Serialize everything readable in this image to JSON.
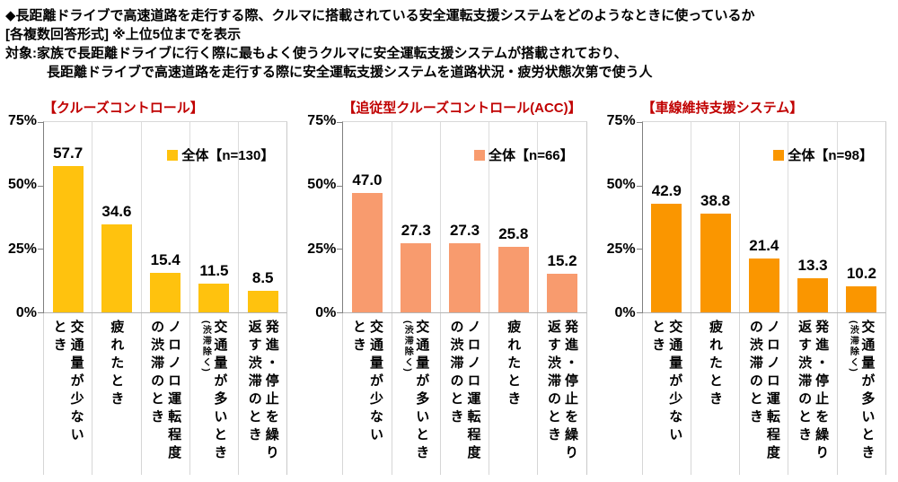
{
  "header": {
    "title": "◆長距離ドライブで高速道路を走行する際、クルマに搭載されている安全運転支援システムをどのようなときに使っているか",
    "format_note": "[各複数回答形式] ※上位5位までを表示",
    "target_line1": "対象:家族で長距離ドライブに行く際に最もよく使うクルマに安全運転支援システムが搭載されており、",
    "target_line2": "長距離ドライブで高速道路を走行する際に安全運転支援システムを道路状況・疲労状態次第で使う人"
  },
  "colors": {
    "title_red": "#C00000",
    "axis_gray": "#7F7F7F",
    "grid_gray": "#DCDCDC"
  },
  "chart_data": [
    {
      "type": "bar",
      "title": "【クルーズコントロール】",
      "legend": "全体【n=130】",
      "bar_color": "#FFC20E",
      "ylim": [
        0,
        75
      ],
      "yticks": [
        "75%",
        "50%",
        "25%",
        "0%"
      ],
      "grid": "vertical-separators",
      "legend_position": "top-right",
      "categories": [
        "交通量が少ないとき",
        "疲れたとき",
        "ノロノロ運転程度の渋滞のとき",
        "交通量が多いとき(渋滞除く)",
        "発進・停止を繰り返す渋滞のとき"
      ],
      "values": [
        57.7,
        34.6,
        15.4,
        11.5,
        8.5
      ],
      "category_columns": [
        [
          {
            "t": "交通量が少ない"
          },
          {
            "t": "とき"
          }
        ],
        [
          {
            "t": "疲れたとき"
          }
        ],
        [
          {
            "t": "ノロノロ運転程度"
          },
          {
            "t": "の渋滞のとき"
          }
        ],
        [
          {
            "t": "交通量が多いとき"
          },
          {
            "t": "(渋滞除く)",
            "small": true
          }
        ],
        [
          {
            "t": "発進・停止を繰り"
          },
          {
            "t": "返す渋滞のとき"
          }
        ]
      ]
    },
    {
      "type": "bar",
      "title": "【追従型クルーズコントロール(ACC)】",
      "legend": "全体【n=66】",
      "bar_color": "#F89B6E",
      "ylim": [
        0,
        75
      ],
      "yticks": [
        "75%",
        "50%",
        "25%",
        "0%"
      ],
      "grid": "vertical-separators",
      "legend_position": "top-right",
      "categories": [
        "交通量が少ないとき",
        "交通量が多いとき(渋滞除く)",
        "ノロノロ運転程度の渋滞のとき",
        "疲れたとき",
        "発進・停止を繰り返す渋滞のとき"
      ],
      "values": [
        47.0,
        27.3,
        27.3,
        25.8,
        15.2
      ],
      "category_columns": [
        [
          {
            "t": "交通量が少ない"
          },
          {
            "t": "とき"
          }
        ],
        [
          {
            "t": "交通量が多いとき"
          },
          {
            "t": "(渋滞除く)",
            "small": true
          }
        ],
        [
          {
            "t": "ノロノロ運転程度"
          },
          {
            "t": "の渋滞のとき"
          }
        ],
        [
          {
            "t": "疲れたとき"
          }
        ],
        [
          {
            "t": "発進・停止を繰り"
          },
          {
            "t": "返す渋滞のとき"
          }
        ]
      ]
    },
    {
      "type": "bar",
      "title": "【車線維持支援システム】",
      "legend": "全体【n=98】",
      "bar_color": "#FA9600",
      "ylim": [
        0,
        75
      ],
      "yticks": [
        "75%",
        "50%",
        "25%",
        "0%"
      ],
      "grid": "vertical-separators",
      "legend_position": "top-right",
      "categories": [
        "交通量が少ないとき",
        "疲れたとき",
        "ノロノロ運転程度の渋滞のとき",
        "発進・停止を繰り返す渋滞のとき",
        "交通量が多いとき(渋滞除く)"
      ],
      "values": [
        42.9,
        38.8,
        21.4,
        13.3,
        10.2
      ],
      "category_columns": [
        [
          {
            "t": "交通量が少ない"
          },
          {
            "t": "とき"
          }
        ],
        [
          {
            "t": "疲れたとき"
          }
        ],
        [
          {
            "t": "ノロノロ運転程度"
          },
          {
            "t": "の渋滞のとき"
          }
        ],
        [
          {
            "t": "発進・停止を繰り"
          },
          {
            "t": "返す渋滞のとき"
          }
        ],
        [
          {
            "t": "交通量が多いとき"
          },
          {
            "t": "(渋滞除く)",
            "small": true
          }
        ]
      ]
    }
  ]
}
